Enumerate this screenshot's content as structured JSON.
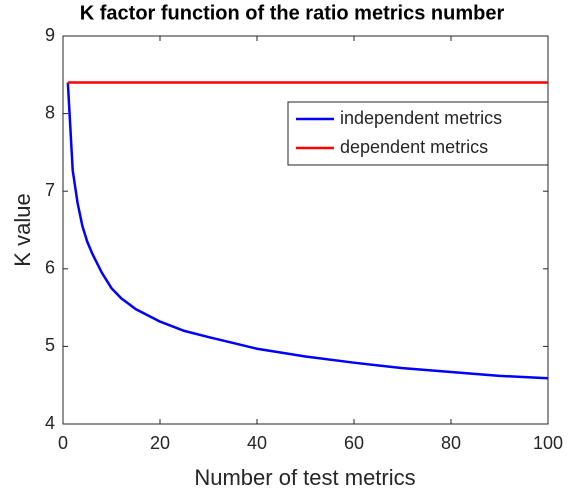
{
  "chart_data": {
    "type": "line",
    "title": "K factor function of the ratio metrics number",
    "xlabel": "Number of test metrics",
    "ylabel": "K value",
    "x": [
      1,
      2,
      3,
      4,
      5,
      6,
      8,
      10,
      12,
      15,
      20,
      25,
      30,
      40,
      50,
      60,
      70,
      80,
      90,
      100
    ],
    "series": [
      {
        "name": "independent metrics",
        "color": "#0000ff",
        "values": [
          8.4,
          7.27,
          6.85,
          6.55,
          6.35,
          6.2,
          5.95,
          5.75,
          5.62,
          5.48,
          5.32,
          5.2,
          5.12,
          4.97,
          4.87,
          4.79,
          4.72,
          4.67,
          4.62,
          4.59
        ]
      },
      {
        "name": "dependent metrics",
        "color": "#ff0000",
        "values": [
          8.4,
          8.4,
          8.4,
          8.4,
          8.4,
          8.4,
          8.4,
          8.4,
          8.4,
          8.4,
          8.4,
          8.4,
          8.4,
          8.4,
          8.4,
          8.4,
          8.4,
          8.4,
          8.4,
          8.4
        ]
      }
    ],
    "xlim": [
      0,
      100
    ],
    "xticks": [
      0,
      20,
      40,
      60,
      80,
      100
    ],
    "ylim": [
      4,
      9
    ],
    "yticks": [
      4,
      5,
      6,
      7,
      8,
      9
    ],
    "grid": false,
    "legend": "northeast"
  }
}
